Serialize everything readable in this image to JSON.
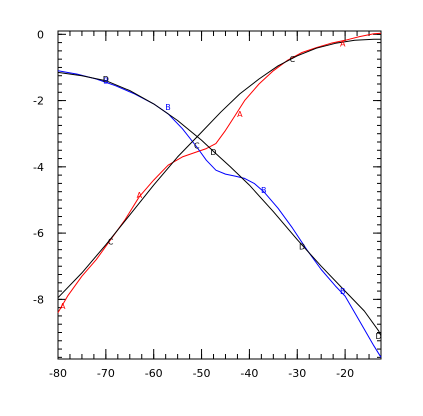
{
  "chart_data": {
    "type": "line",
    "title": "",
    "xlabel": "",
    "ylabel": "",
    "xlim": [
      -80,
      -12.5
    ],
    "ylim": [
      -9.8,
      0.1
    ],
    "x_ticks": [
      -80,
      -70,
      -60,
      -50,
      -40,
      -30,
      -20
    ],
    "y_ticks": [
      0,
      -2,
      -4,
      -6,
      -8
    ],
    "grid": false,
    "legend": "none",
    "series": [
      {
        "color": "#ff0000",
        "symbol": "A",
        "points": [
          [
            -80,
            -8.4
          ],
          [
            -78,
            -7.9
          ],
          [
            -75,
            -7.3
          ],
          [
            -72,
            -6.8
          ],
          [
            -69,
            -6.2
          ],
          [
            -66,
            -5.6
          ],
          [
            -63,
            -4.9
          ],
          [
            -60,
            -4.4
          ],
          [
            -57,
            -3.95
          ],
          [
            -54,
            -3.7
          ],
          [
            -51,
            -3.55
          ],
          [
            -49,
            -3.45
          ],
          [
            -47,
            -3.3
          ],
          [
            -45,
            -2.9
          ],
          [
            -43,
            -2.45
          ],
          [
            -41,
            -2.0
          ],
          [
            -38,
            -1.5
          ],
          [
            -35,
            -1.1
          ],
          [
            -32,
            -0.78
          ],
          [
            -29,
            -0.55
          ],
          [
            -26,
            -0.4
          ],
          [
            -23,
            -0.27
          ],
          [
            -20,
            -0.18
          ],
          [
            -17,
            -0.07
          ],
          [
            -14,
            0.02
          ],
          [
            -12.5,
            0.03
          ]
        ],
        "markers": [
          [
            -79,
            -8.2
          ],
          [
            -63,
            -4.85
          ],
          [
            -42,
            -2.4
          ],
          [
            -20.5,
            -0.27
          ]
        ]
      },
      {
        "color": "#0000ff",
        "symbol": "B",
        "points": [
          [
            -80,
            -1.1
          ],
          [
            -76,
            -1.2
          ],
          [
            -72,
            -1.35
          ],
          [
            -68,
            -1.55
          ],
          [
            -64,
            -1.8
          ],
          [
            -60,
            -2.1
          ],
          [
            -57,
            -2.4
          ],
          [
            -54,
            -2.85
          ],
          [
            -51,
            -3.4
          ],
          [
            -49,
            -3.8
          ],
          [
            -47,
            -4.1
          ],
          [
            -45,
            -4.22
          ],
          [
            -43,
            -4.28
          ],
          [
            -41,
            -4.35
          ],
          [
            -39,
            -4.5
          ],
          [
            -37,
            -4.75
          ],
          [
            -34,
            -5.25
          ],
          [
            -31,
            -5.85
          ],
          [
            -28,
            -6.5
          ],
          [
            -25,
            -7.1
          ],
          [
            -22,
            -7.6
          ],
          [
            -20,
            -7.9
          ],
          [
            -18,
            -8.4
          ],
          [
            -16,
            -8.9
          ],
          [
            -14,
            -9.4
          ],
          [
            -12.5,
            -9.75
          ]
        ],
        "markers": [
          [
            -70,
            -1.4
          ],
          [
            -57,
            -2.2
          ],
          [
            -37,
            -4.7
          ],
          [
            -20.5,
            -7.75
          ]
        ]
      },
      {
        "color": "#000000",
        "symbol": "C",
        "points": [
          [
            -80,
            -7.95
          ],
          [
            -75,
            -7.2
          ],
          [
            -70,
            -6.35
          ],
          [
            -65,
            -5.45
          ],
          [
            -60,
            -4.55
          ],
          [
            -55,
            -3.7
          ],
          [
            -50,
            -2.95
          ],
          [
            -46,
            -2.35
          ],
          [
            -42,
            -1.8
          ],
          [
            -38,
            -1.35
          ],
          [
            -34,
            -0.95
          ],
          [
            -30,
            -0.65
          ],
          [
            -26,
            -0.42
          ],
          [
            -22,
            -0.27
          ],
          [
            -18,
            -0.18
          ],
          [
            -14,
            -0.15
          ],
          [
            -12.5,
            -0.15
          ]
        ],
        "markers": [
          [
            -69,
            -6.25
          ],
          [
            -51,
            -3.35
          ],
          [
            -31,
            -0.75
          ]
        ]
      },
      {
        "color": "#000000",
        "symbol": "D",
        "points": [
          [
            -80,
            -1.15
          ],
          [
            -75,
            -1.25
          ],
          [
            -70,
            -1.4
          ],
          [
            -65,
            -1.7
          ],
          [
            -60,
            -2.1
          ],
          [
            -55,
            -2.6
          ],
          [
            -50,
            -3.2
          ],
          [
            -47,
            -3.6
          ],
          [
            -44,
            -4.0
          ],
          [
            -40,
            -4.55
          ],
          [
            -35,
            -5.35
          ],
          [
            -30,
            -6.2
          ],
          [
            -25,
            -7.0
          ],
          [
            -20,
            -7.75
          ],
          [
            -16,
            -8.35
          ],
          [
            -13,
            -8.95
          ],
          [
            -12.5,
            -9.1
          ]
        ],
        "markers": [
          [
            -70,
            -1.35
          ],
          [
            -47.5,
            -3.55
          ],
          [
            -29,
            -6.4
          ],
          [
            -13,
            -9.1
          ]
        ]
      }
    ]
  }
}
